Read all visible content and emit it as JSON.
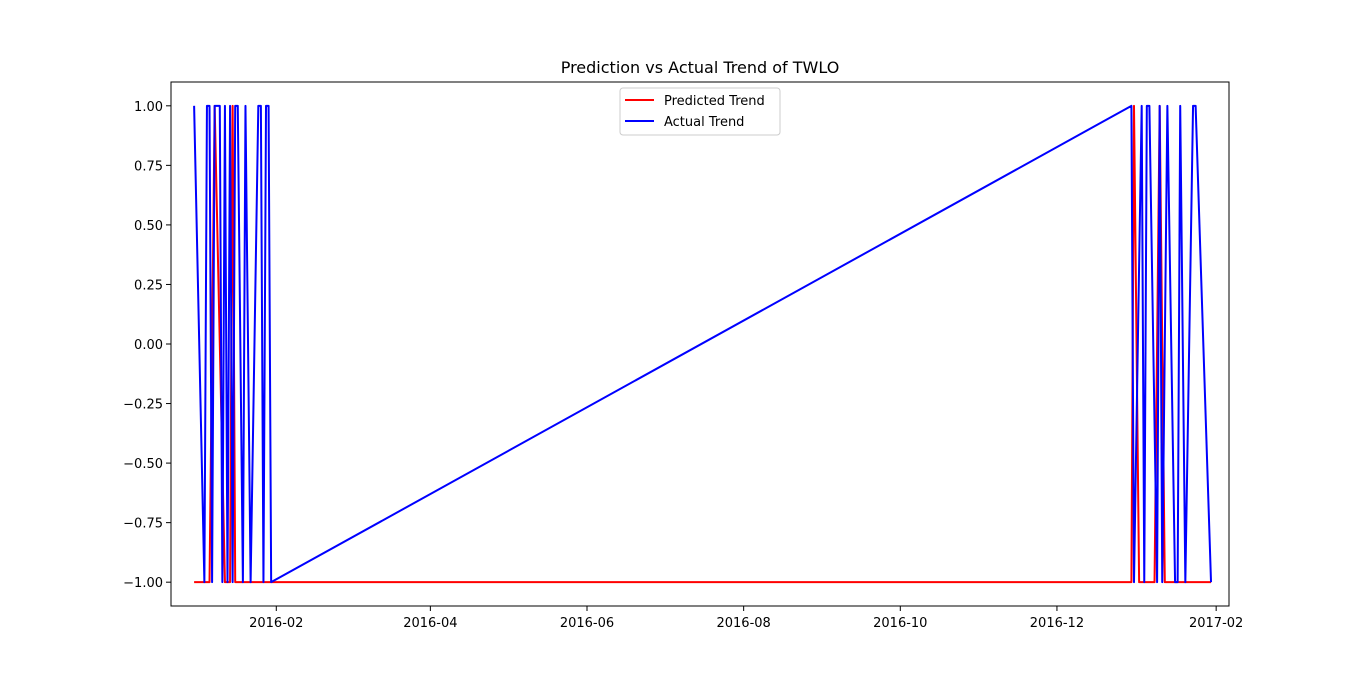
{
  "chart_data": {
    "type": "line",
    "title": "Prediction vs Actual Trend of TWLO",
    "xlabel": "",
    "ylabel": "",
    "x_axis_type": "date",
    "xlim": [
      "2015-12-22",
      "2017-02-06"
    ],
    "ylim": [
      -1.1,
      1.1
    ],
    "x_ticks": [
      "2016-02",
      "2016-04",
      "2016-06",
      "2016-08",
      "2016-10",
      "2016-12",
      "2017-02"
    ],
    "y_ticks": [
      "1.00",
      "0.75",
      "0.50",
      "0.25",
      "0.00",
      "−0.25",
      "−0.50",
      "−0.75",
      "−1.00"
    ],
    "grid": false,
    "legend_position": "top-center",
    "colors": {
      "predicted": "#ff0000",
      "actual": "#0000ff"
    },
    "series": [
      {
        "name": "Predicted Trend",
        "color": "#ff0000",
        "x": [
          "2015-12-31",
          "2016-01-02",
          "2016-01-04",
          "2016-01-06",
          "2016-01-08",
          "2016-01-12",
          "2016-01-14",
          "2016-01-15",
          "2016-01-16",
          "2016-01-18",
          "2016-01-20",
          "2016-01-22",
          "2016-01-25",
          "2016-01-27",
          "2016-01-29",
          "2016-12-30",
          "2016-12-31",
          "2017-01-02",
          "2017-01-04",
          "2017-01-06",
          "2017-01-08",
          "2017-01-10",
          "2017-01-12",
          "2017-01-14",
          "2017-01-16",
          "2017-01-18",
          "2017-01-20",
          "2017-01-24",
          "2017-01-27",
          "2017-01-30"
        ],
        "y": [
          -1,
          -1,
          -1,
          -1,
          1,
          -1,
          -1,
          1,
          -1,
          -1,
          -1,
          -1,
          -1,
          -1,
          -1,
          -1,
          1,
          -1,
          -1,
          -1,
          -1,
          1,
          -1,
          -1,
          -1,
          -1,
          -1,
          -1,
          -1,
          -1
        ]
      },
      {
        "name": "Actual Trend",
        "color": "#0000ff",
        "x": [
          "2015-12-31",
          "2016-01-04",
          "2016-01-05",
          "2016-01-06",
          "2016-01-07",
          "2016-01-08",
          "2016-01-10",
          "2016-01-11",
          "2016-01-12",
          "2016-01-13",
          "2016-01-14",
          "2016-01-15",
          "2016-01-16",
          "2016-01-17",
          "2016-01-19",
          "2016-01-20",
          "2016-01-22",
          "2016-01-25",
          "2016-01-26",
          "2016-01-27",
          "2016-01-28",
          "2016-01-29",
          "2016-01-30",
          "2016-01-30",
          "2016-12-30",
          "2016-12-31",
          "2017-01-03",
          "2017-01-04",
          "2017-01-05",
          "2017-01-06",
          "2017-01-09",
          "2017-01-10",
          "2017-01-11",
          "2017-01-13",
          "2017-01-16",
          "2017-01-17",
          "2017-01-18",
          "2017-01-20",
          "2017-01-23",
          "2017-01-24",
          "2017-01-30"
        ],
        "y": [
          1,
          -1,
          1,
          1,
          -1,
          1,
          1,
          -1,
          1,
          -1,
          1,
          -1,
          1,
          1,
          -1,
          1,
          -1,
          1,
          1,
          -1,
          1,
          1,
          -1,
          -1,
          1,
          -1,
          1,
          -1,
          1,
          1,
          -1,
          1,
          -1,
          1,
          -1,
          -1,
          1,
          -1,
          1,
          1,
          -1
        ]
      }
    ]
  }
}
